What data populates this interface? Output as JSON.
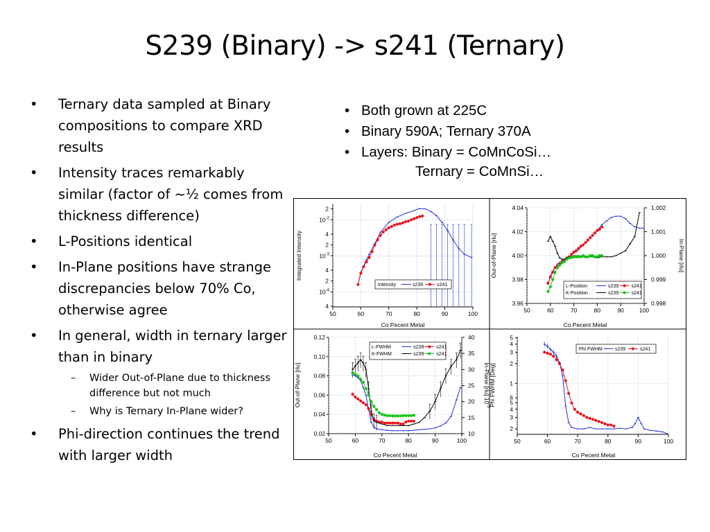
{
  "title": "S239 (Binary) -> s241 (Ternary)",
  "left_bullets": [
    {
      "text": "Ternary data sampled at Binary compositions to compare XRD results"
    },
    {
      "text": "Intensity traces remarkably similar (factor of ~½ comes from thickness difference)"
    },
    {
      "text": "L-Positions identical"
    },
    {
      "text": "In-Plane positions have strange discrepancies below 70% Co, otherwise agree"
    },
    {
      "text": "In general, width in ternary larger than in binary",
      "sub": [
        "Wider Out-of-Plane due to thickness difference but not much",
        "Why is Ternary In-Plane wider?"
      ]
    },
    {
      "text": "Phi-direction continues the trend with larger width"
    }
  ],
  "right_bullets": [
    "Both grown at 225C",
    "Binary 590A; Ternary 370A",
    "Layers: Binary = CoMnCoSi…"
  ],
  "ternary_line": "Ternary = CoMnSi…",
  "colors": {
    "s239": "#2432d8",
    "s241": "#e8141e",
    "kpos241": "#16c416",
    "black": "#000000"
  },
  "chart_data": [
    {
      "type": "line",
      "id": "intensity",
      "xlabel": "Co Pecent Metal",
      "ylabel": "Integrated Intensity",
      "xlim": [
        50,
        100
      ],
      "xticks": [
        "50",
        "60",
        "70",
        "80",
        "90",
        "100"
      ],
      "ylog": true,
      "ylim": [
        3.85e-05,
        0.028
      ],
      "yticklabels": [
        {
          "v": 0.02,
          "t": "2"
        },
        {
          "v": 0.01,
          "t": "10",
          "sup": "-2"
        },
        {
          "v": 0.004,
          "t": "4"
        },
        {
          "v": 0.002,
          "t": "2"
        },
        {
          "v": 0.001,
          "t": "10",
          "sup": "-3"
        },
        {
          "v": 0.0004,
          "t": "4"
        },
        {
          "v": 0.0002,
          "t": "2"
        },
        {
          "v": 0.0001,
          "t": "10",
          "sup": "-4"
        },
        {
          "v": 4e-05,
          "t": "4"
        }
      ],
      "legend": [
        "Intensity",
        "s239",
        "s241"
      ],
      "series": [
        {
          "name": "s239",
          "color": "#2432d8",
          "x": [
            59,
            60,
            61,
            62,
            63,
            65,
            67,
            70,
            73,
            76,
            79,
            81,
            83,
            85,
            87,
            89,
            91,
            93,
            95,
            97,
            99.5
          ],
          "y": [
            0.00016,
            0.00035,
            0.00052,
            0.00078,
            0.0011,
            0.0022,
            0.0045,
            0.0085,
            0.012,
            0.015,
            0.018,
            0.0205,
            0.02,
            0.017,
            0.013,
            0.0085,
            0.005,
            0.0027,
            0.0016,
            0.0011,
            0.0009
          ]
        },
        {
          "name": "s241",
          "color": "#e8141e",
          "x": [
            59,
            60,
            61,
            62,
            63,
            64,
            65,
            66,
            67,
            68,
            69,
            70,
            71,
            72,
            73,
            74,
            75,
            76,
            77,
            78,
            79,
            80,
            81,
            82
          ],
          "y": [
            0.00016,
            0.00033,
            0.0005,
            0.00068,
            0.0009,
            0.0013,
            0.002,
            0.0028,
            0.0037,
            0.0046,
            0.0053,
            0.006,
            0.0065,
            0.0071,
            0.0075,
            0.0078,
            0.0082,
            0.0088,
            0.0092,
            0.01,
            0.0107,
            0.0115,
            0.0122,
            0.0127
          ]
        }
      ]
    },
    {
      "type": "line",
      "id": "positions",
      "xlabel": "Co Pecent Metal",
      "ylabel": "Out-of-Plane [rlu]",
      "y2label": "In-Plane [rlu]",
      "xlim": [
        50,
        100
      ],
      "xticks": [
        "50",
        "60",
        "70",
        "80",
        "90",
        "100"
      ],
      "ylim": [
        3.96,
        4.04
      ],
      "yticks": [
        "3.96",
        "3.98",
        "4.00",
        "4.02",
        "4.04"
      ],
      "y2lim": [
        0.998,
        1.002
      ],
      "y2ticks": [
        "0.998",
        "0.999",
        "1.000",
        "1.001",
        "1.002"
      ],
      "legend": [
        {
          "label": "L-Position",
          "s239": "s239",
          "s241": "s241"
        },
        {
          "label": "K-Position",
          "s239": "s239",
          "s241": "s241"
        }
      ],
      "series": [
        {
          "name": "s239",
          "color": "#2432d8",
          "axis": "left",
          "x": [
            59,
            60,
            61,
            62,
            63,
            65,
            67,
            70,
            72,
            74,
            76,
            78,
            80,
            82,
            84,
            86,
            88,
            90,
            92,
            94,
            96,
            98,
            99.5
          ],
          "y": [
            3.976,
            3.983,
            3.987,
            3.99,
            3.993,
            3.996,
            3.998,
            4.002,
            4.005,
            4.009,
            4.013,
            4.017,
            4.021,
            4.026,
            4.029,
            4.032,
            4.033,
            4.033,
            4.031,
            4.027,
            4.024,
            4.023,
            4.023
          ]
        },
        {
          "name": "s241",
          "color": "#e8141e",
          "axis": "left",
          "x": [
            59,
            60,
            61,
            62,
            63,
            64,
            65,
            66,
            67,
            68,
            69,
            70,
            71,
            72,
            73,
            74,
            75,
            76,
            77,
            78,
            79,
            80,
            81,
            82
          ],
          "y": [
            3.977,
            3.982,
            3.986,
            3.99,
            3.991,
            3.993,
            3.995,
            3.996,
            3.998,
            3.999,
            4.001,
            4.003,
            4.004,
            4.006,
            4.008,
            4.009,
            4.011,
            4.013,
            4.015,
            4.017,
            4.019,
            4.021,
            4.022,
            4.024
          ]
        },
        {
          "name": "s239",
          "color": "#000000",
          "axis": "right",
          "x": [
            59,
            60,
            61,
            62,
            63,
            64,
            65,
            66,
            67,
            68,
            69,
            70,
            72,
            74,
            76,
            78,
            80,
            82,
            84,
            86,
            88,
            90,
            92,
            94,
            96,
            98
          ],
          "y": [
            1.0006,
            1.0008,
            1.0006,
            1.0004,
            1.0001,
            0.9999,
            0.99985,
            0.99985,
            0.9999,
            0.99995,
            0.99995,
            1.0,
            1.0,
            0.99995,
            0.99995,
            0.99995,
            0.9999,
            0.99995,
            0.99995,
            0.99995,
            1.0,
            1.0001,
            1.0002,
            1.0005,
            1.0008,
            1.0018
          ]
        },
        {
          "name": "s241",
          "color": "#16c416",
          "axis": "right",
          "x": [
            59,
            60,
            61,
            62,
            63,
            64,
            65,
            66,
            67,
            68,
            69,
            70,
            71,
            72,
            73,
            74,
            75,
            76,
            77,
            78,
            79,
            80,
            81,
            82
          ],
          "y": [
            0.9985,
            0.9987,
            0.999,
            0.9993,
            0.9995,
            0.9996,
            0.9997,
            0.99975,
            0.99985,
            0.9999,
            0.99992,
            0.99995,
            0.99995,
            0.99995,
            0.99995,
            1.0,
            0.99995,
            0.99995,
            1.0,
            1.0,
            0.99995,
            0.99995,
            1.0,
            1.0
          ]
        }
      ]
    },
    {
      "type": "line",
      "id": "fwhm",
      "xlabel": "Co Pecent Metal",
      "ylabel": "Out-of-Plane [rlu]",
      "y2label": "In-Plane [rlu] 10",
      "y2label_sup": "-3",
      "xlim": [
        50,
        100
      ],
      "xticks": [
        "50",
        "60",
        "70",
        "80",
        "90",
        "100"
      ],
      "ylim": [
        0.02,
        0.12
      ],
      "yticks": [
        "0.02",
        "0.04",
        "0.06",
        "0.08",
        "0.10",
        "0.12"
      ],
      "y2lim": [
        10,
        40
      ],
      "y2ticks": [
        "10",
        "15",
        "20",
        "25",
        "30",
        "35",
        "40"
      ],
      "legend": [
        {
          "label": "L-FWHM",
          "s239": "s239",
          "s241": "s241"
        },
        {
          "label": "K-FWHM",
          "s239": "s239",
          "s241": "s241"
        }
      ],
      "series": [
        {
          "name": "s239",
          "color": "#2432d8",
          "axis": "left",
          "x": [
            59,
            60,
            61,
            62,
            63,
            64,
            65,
            66,
            67,
            68,
            70,
            72,
            74,
            76,
            78,
            80,
            82,
            84,
            86,
            88,
            90,
            92,
            94,
            96,
            98,
            99.5
          ],
          "y": [
            0.081,
            0.08,
            0.078,
            0.075,
            0.068,
            0.06,
            0.045,
            0.032,
            0.027,
            0.025,
            0.024,
            0.0235,
            0.023,
            0.023,
            0.023,
            0.023,
            0.0235,
            0.024,
            0.0245,
            0.025,
            0.026,
            0.028,
            0.031,
            0.038,
            0.055,
            0.068
          ]
        },
        {
          "name": "s241",
          "color": "#e8141e",
          "axis": "left",
          "x": [
            59,
            60,
            61,
            62,
            63,
            64,
            65,
            66,
            67,
            68,
            69,
            70,
            71,
            72,
            73,
            74,
            75,
            76,
            77,
            78,
            79,
            80,
            81,
            82
          ],
          "y": [
            0.061,
            0.058,
            0.056,
            0.054,
            0.052,
            0.05,
            0.046,
            0.04,
            0.035,
            0.033,
            0.032,
            0.032,
            0.031,
            0.031,
            0.031,
            0.031,
            0.031,
            0.031,
            0.03,
            0.03,
            0.032,
            0.033,
            0.033,
            0.033
          ]
        },
        {
          "name": "s239",
          "color": "#000000",
          "axis": "right",
          "x": [
            59,
            60,
            61,
            62,
            63,
            64,
            65,
            66,
            67,
            68,
            70,
            72,
            74,
            76,
            78,
            80,
            82,
            84,
            86,
            88,
            90,
            92,
            94,
            96,
            98,
            99.5
          ],
          "y": [
            30,
            31,
            32,
            33,
            32,
            30,
            24,
            17,
            14,
            13.5,
            13,
            12.5,
            12.5,
            12.5,
            12.5,
            12.5,
            13,
            13.5,
            15,
            17,
            20,
            24,
            28,
            31,
            33,
            36
          ]
        },
        {
          "name": "s241",
          "color": "#16c416",
          "axis": "right",
          "x": [
            59,
            60,
            61,
            62,
            63,
            64,
            65,
            66,
            67,
            68,
            69,
            70,
            71,
            72,
            73,
            74,
            75,
            76,
            77,
            78,
            79,
            80,
            81,
            82
          ],
          "y": [
            29,
            28.5,
            28,
            27,
            26,
            24,
            22,
            20,
            18.5,
            17.5,
            16.5,
            16,
            15.8,
            15.6,
            15.6,
            15.5,
            15.5,
            15.5,
            15.5,
            15.6,
            15.6,
            15.6,
            15.6,
            15.7
          ]
        }
      ]
    },
    {
      "type": "line",
      "id": "phi",
      "xlabel": "Co Pecent Metal",
      "ylabel": "Phi FWHM [Deg]",
      "xlim": [
        50,
        100
      ],
      "xticks": [
        "50",
        "60",
        "70",
        "80",
        "90",
        "100"
      ],
      "ylog": true,
      "ylim": [
        0.165,
        5.2
      ],
      "yticklabels": [
        {
          "v": 5,
          "t": "5"
        },
        {
          "v": 4,
          "t": "4"
        },
        {
          "v": 3,
          "t": "3"
        },
        {
          "v": 2,
          "t": "2"
        },
        {
          "v": 1,
          "t": "1"
        },
        {
          "v": 0.6,
          "t": "6"
        },
        {
          "v": 0.5,
          "t": "5"
        },
        {
          "v": 0.4,
          "t": "4"
        },
        {
          "v": 0.3,
          "t": "3"
        },
        {
          "v": 0.2,
          "t": "2"
        }
      ],
      "legend": [
        "Phi FWHM",
        "s239",
        "s241"
      ],
      "series": [
        {
          "name": "s239",
          "color": "#2432d8",
          "x": [
            59,
            60,
            61,
            62,
            63,
            64,
            65,
            66,
            67,
            68,
            70,
            72,
            74,
            76,
            78,
            80,
            82,
            84,
            86,
            88,
            89,
            90,
            91,
            92,
            94,
            96,
            98,
            99.5
          ],
          "y": [
            4.0,
            3.7,
            3.3,
            3.0,
            2.6,
            2.1,
            1.3,
            0.45,
            0.25,
            0.21,
            0.2,
            0.2,
            0.21,
            0.2,
            0.2,
            0.2,
            0.2,
            0.205,
            0.2,
            0.21,
            0.24,
            0.3,
            0.24,
            0.2,
            0.19,
            0.185,
            0.18,
            0.17
          ]
        },
        {
          "name": "s241",
          "color": "#e8141e",
          "x": [
            59,
            60,
            61,
            62,
            63,
            64,
            65,
            66,
            67,
            68,
            69,
            70,
            71,
            72,
            73,
            74,
            75,
            76,
            77,
            78,
            79,
            80,
            81,
            82
          ],
          "y": [
            3.0,
            2.9,
            2.8,
            2.6,
            2.3,
            2.0,
            1.6,
            1.1,
            0.7,
            0.5,
            0.4,
            0.36,
            0.34,
            0.32,
            0.3,
            0.29,
            0.28,
            0.27,
            0.26,
            0.25,
            0.24,
            0.23,
            0.23,
            0.22
          ]
        }
      ]
    }
  ]
}
